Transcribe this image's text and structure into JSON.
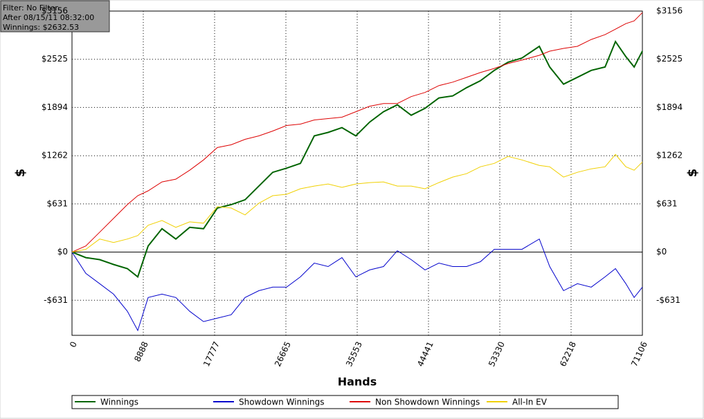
{
  "chart_data": {
    "type": "line",
    "info_box": [
      "Filter: No Filter",
      "After 08/15/11 08:32:00",
      "Winnings: $2632.53"
    ],
    "xlabel": "Hands",
    "ylabel": "$",
    "xlim": [
      0,
      71106
    ],
    "ylim": [
      -1090,
      3156
    ],
    "xticks": [
      0,
      8888,
      17777,
      26665,
      35553,
      44441,
      53330,
      62218,
      71106
    ],
    "yticks": [
      {
        "value": -631,
        "label": "-$631"
      },
      {
        "value": 0,
        "label": "$0"
      },
      {
        "value": 631,
        "label": "$631"
      },
      {
        "value": 1262,
        "label": "$1262"
      },
      {
        "value": 1894,
        "label": "$1894"
      },
      {
        "value": 2525,
        "label": "$2525"
      },
      {
        "value": 3156,
        "label": "$3156"
      }
    ],
    "grid": true,
    "x": [
      0,
      1726,
      3452,
      5178,
      6904,
      8199,
      9493,
      11219,
      12945,
      14671,
      16397,
      18123,
      19849,
      21575,
      23301,
      25027,
      26753,
      28479,
      30205,
      31931,
      33657,
      35383,
      37109,
      38835,
      40561,
      42287,
      44013,
      45739,
      47465,
      49191,
      50917,
      52643,
      54369,
      56095,
      58253,
      59547,
      61273,
      62999,
      64725,
      66451,
      67746,
      69040,
      70076,
      71106
    ],
    "series": [
      {
        "name": "Winnings",
        "color": "#006400",
        "values": [
          0,
          -72,
          -99,
          -162,
          -216,
          -324,
          81,
          306,
          171,
          324,
          306,
          577,
          622,
          685,
          865,
          1045,
          1099,
          1162,
          1522,
          1567,
          1630,
          1522,
          1702,
          1838,
          1928,
          1792,
          1883,
          2018,
          2045,
          2153,
          2243,
          2379,
          2487,
          2541,
          2694,
          2424,
          2199,
          2289,
          2379,
          2424,
          2757,
          2559,
          2424,
          2633
        ]
      },
      {
        "name": "Showdown Winnings",
        "color": "#0000cc",
        "values": [
          0,
          -279,
          -414,
          -550,
          -775,
          -1027,
          -595,
          -550,
          -595,
          -775,
          -910,
          -865,
          -820,
          -595,
          -505,
          -459,
          -459,
          -324,
          -144,
          -189,
          -72,
          -324,
          -234,
          -189,
          18,
          -99,
          -234,
          -144,
          -189,
          -189,
          -126,
          36,
          36,
          36,
          171,
          -189,
          -505,
          -414,
          -459,
          -324,
          -216,
          -414,
          -595,
          -459
        ]
      },
      {
        "name": "Non Showdown Winnings",
        "color": "#dd0000",
        "values": [
          0,
          81,
          261,
          441,
          622,
          739,
          802,
          919,
          955,
          1072,
          1207,
          1369,
          1405,
          1477,
          1522,
          1585,
          1658,
          1676,
          1730,
          1748,
          1766,
          1838,
          1910,
          1946,
          1946,
          2036,
          2090,
          2180,
          2225,
          2288,
          2351,
          2405,
          2469,
          2514,
          2577,
          2631,
          2667,
          2694,
          2784,
          2847,
          2919,
          2991,
          3027,
          3136
        ]
      },
      {
        "name": "All-In EV",
        "color": "#f0d000",
        "values": [
          0,
          36,
          171,
          126,
          171,
          216,
          351,
          414,
          324,
          396,
          378,
          595,
          577,
          487,
          640,
          739,
          757,
          829,
          865,
          892,
          847,
          892,
          910,
          919,
          865,
          865,
          829,
          910,
          982,
          1027,
          1117,
          1162,
          1252,
          1207,
          1135,
          1117,
          982,
          1045,
          1090,
          1117,
          1279,
          1117,
          1072,
          1180
        ]
      }
    ]
  }
}
